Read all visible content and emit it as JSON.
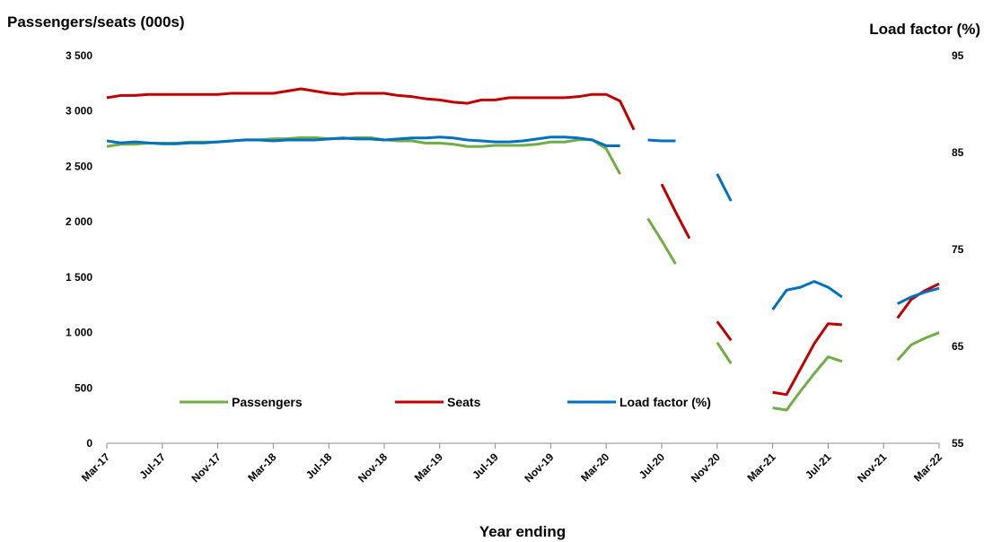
{
  "chart_data": {
    "type": "line",
    "title_left": "Passengers/seats (000s)",
    "title_right": "Load factor (%)",
    "xlabel": "Year ending",
    "x_tick_labels": [
      "Mar-17",
      "Jul-17",
      "Nov-17",
      "Mar-18",
      "Jul-18",
      "Nov-18",
      "Mar-19",
      "Jul-19",
      "Nov-19",
      "Mar-20",
      "Jul-20",
      "Nov-20",
      "Mar-21",
      "Jul-21",
      "Nov-21",
      "Mar-22"
    ],
    "y_left": {
      "min": 0,
      "max": 3500,
      "step": 500,
      "tick_labels": [
        "0",
        "500",
        "1 000",
        "1 500",
        "2 000",
        "2 500",
        "3 000",
        "3 500"
      ]
    },
    "y_right": {
      "min": 55,
      "max": 95,
      "step": 10,
      "tick_labels": [
        "55",
        "65",
        "75",
        "85",
        "95"
      ]
    },
    "legend_placement": "bottom-left",
    "months": [
      "Mar-17",
      "Apr-17",
      "May-17",
      "Jun-17",
      "Jul-17",
      "Aug-17",
      "Sep-17",
      "Oct-17",
      "Nov-17",
      "Dec-17",
      "Jan-18",
      "Feb-18",
      "Mar-18",
      "Apr-18",
      "May-18",
      "Jun-18",
      "Jul-18",
      "Aug-18",
      "Sep-18",
      "Oct-18",
      "Nov-18",
      "Dec-18",
      "Jan-19",
      "Feb-19",
      "Mar-19",
      "Apr-19",
      "May-19",
      "Jun-19",
      "Jul-19",
      "Aug-19",
      "Sep-19",
      "Oct-19",
      "Nov-19",
      "Dec-19",
      "Jan-20",
      "Feb-20",
      "Mar-20",
      "Apr-20",
      "May-20",
      "Jun-20",
      "Jul-20",
      "Aug-20",
      "Sep-20",
      "Oct-20",
      "Nov-20",
      "Dec-20",
      "Jan-21",
      "Feb-21",
      "Mar-21",
      "Apr-21",
      "May-21",
      "Jun-21",
      "Jul-21",
      "Aug-21",
      "Sep-21",
      "Oct-21",
      "Nov-21",
      "Dec-21",
      "Jan-22",
      "Feb-22",
      "Mar-22"
    ],
    "series": [
      {
        "name": "Passengers",
        "axis": "left",
        "color": "#70ad47",
        "values": [
          2680,
          2700,
          2700,
          2710,
          2710,
          2710,
          2720,
          2720,
          2720,
          2730,
          2740,
          2740,
          2750,
          2750,
          2760,
          2760,
          2750,
          2750,
          2760,
          2760,
          2740,
          2730,
          2730,
          2710,
          2710,
          2700,
          2680,
          2680,
          2690,
          2690,
          2690,
          2700,
          2720,
          2720,
          2740,
          2740,
          2660,
          2430,
          null,
          2030,
          1830,
          1620,
          null,
          null,
          910,
          720,
          null,
          null,
          320,
          300,
          470,
          630,
          780,
          740,
          null,
          null,
          null,
          750,
          890,
          950,
          1000
        ]
      },
      {
        "name": "Seats",
        "axis": "left",
        "color": "#c00000",
        "values": [
          3120,
          3140,
          3140,
          3150,
          3150,
          3150,
          3150,
          3150,
          3150,
          3160,
          3160,
          3160,
          3160,
          3180,
          3200,
          3180,
          3160,
          3150,
          3160,
          3160,
          3160,
          3140,
          3130,
          3110,
          3100,
          3080,
          3070,
          3100,
          3100,
          3120,
          3120,
          3120,
          3120,
          3120,
          3130,
          3150,
          3150,
          3090,
          2830,
          null,
          2340,
          2090,
          1850,
          null,
          1100,
          930,
          null,
          null,
          460,
          440,
          670,
          900,
          1080,
          1070,
          null,
          null,
          null,
          1130,
          1300,
          1380,
          1440
        ]
      },
      {
        "name": "Load factor (%)",
        "axis": "right",
        "color": "#0070c0",
        "values": [
          86.2,
          86.0,
          86.1,
          86.0,
          85.9,
          85.9,
          86.0,
          86.0,
          86.1,
          86.2,
          86.3,
          86.3,
          86.2,
          86.3,
          86.3,
          86.3,
          86.4,
          86.5,
          86.4,
          86.4,
          86.3,
          86.4,
          86.5,
          86.5,
          86.6,
          86.5,
          86.3,
          86.2,
          86.1,
          86.1,
          86.2,
          86.4,
          86.6,
          86.6,
          86.5,
          86.3,
          85.7,
          85.7,
          null,
          86.3,
          86.2,
          86.2,
          null,
          null,
          82.8,
          80.0,
          null,
          null,
          68.8,
          70.8,
          71.1,
          71.7,
          71.1,
          70.1,
          null,
          null,
          null,
          69.4,
          70.1,
          70.6,
          71.0
        ]
      }
    ]
  }
}
